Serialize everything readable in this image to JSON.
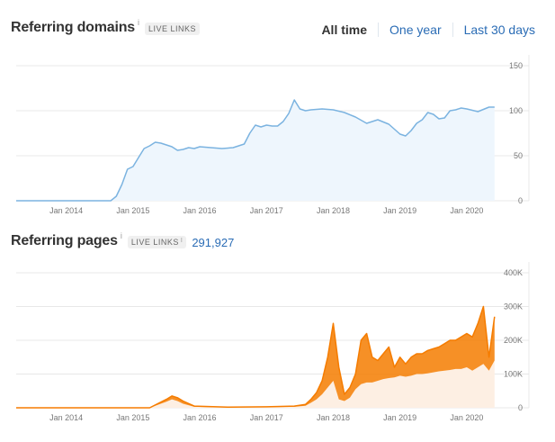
{
  "domains_panel": {
    "title": "Referring domains",
    "info_mark": "i",
    "badge": "LIVE LINKS"
  },
  "time_tabs": [
    {
      "label": "All time",
      "active": true
    },
    {
      "label": "One year",
      "active": false
    },
    {
      "label": "Last 30 days",
      "active": false
    }
  ],
  "pages_panel": {
    "title": "Referring pages",
    "info_mark": "i",
    "badge": "LIVE LINKS",
    "badge_info": "i",
    "count": "291,927"
  },
  "colors": {
    "domains_line": "#7bb3e0",
    "domains_fill": "#eef6fd",
    "pages_line": "#f57c00",
    "pages_fill": "#fdefe3"
  },
  "chart_data": [
    {
      "type": "area",
      "title": "Referring domains",
      "x_ticks": [
        "Jan 2014",
        "Jan 2015",
        "Jan 2016",
        "Jan 2017",
        "Jan 2018",
        "Jan 2019",
        "Jan 2020"
      ],
      "y_ticks": [
        "150",
        "100",
        "50",
        "0"
      ],
      "ylim": [
        0,
        150
      ],
      "xlim": [
        "2013-04",
        "2020-07"
      ],
      "grid": true,
      "series": [
        {
          "x": [
            "2013-04",
            "2014-03",
            "2014-09",
            "2014-10",
            "2014-11",
            "2014-12",
            "2015-01",
            "2015-02",
            "2015-03",
            "2015-04",
            "2015-05",
            "2015-06",
            "2015-07",
            "2015-08",
            "2015-09",
            "2015-10",
            "2015-11",
            "2015-12",
            "2016-01",
            "2016-03",
            "2016-05",
            "2016-07",
            "2016-09",
            "2016-10",
            "2016-11",
            "2016-12",
            "2017-01",
            "2017-02",
            "2017-03",
            "2017-04",
            "2017-05",
            "2017-06",
            "2017-07",
            "2017-08",
            "2017-09",
            "2017-11",
            "2018-01",
            "2018-03",
            "2018-05",
            "2018-07",
            "2018-09",
            "2018-11",
            "2019-01",
            "2019-02",
            "2019-03",
            "2019-04",
            "2019-05",
            "2019-06",
            "2019-07",
            "2019-08",
            "2019-09",
            "2019-10",
            "2019-11",
            "2019-12",
            "2020-01",
            "2020-03",
            "2020-05",
            "2020-06"
          ],
          "values": [
            0,
            0,
            0,
            5,
            18,
            35,
            38,
            48,
            58,
            61,
            65,
            64,
            62,
            60,
            56,
            57,
            59,
            58,
            60,
            59,
            58,
            59,
            63,
            75,
            84,
            82,
            84,
            83,
            83,
            88,
            97,
            112,
            102,
            100,
            101,
            102,
            101,
            98,
            93,
            86,
            90,
            85,
            74,
            72,
            78,
            86,
            90,
            98,
            96,
            91,
            92,
            100,
            101,
            103,
            102,
            99,
            104,
            104
          ]
        }
      ]
    },
    {
      "type": "area",
      "title": "Referring pages",
      "x_ticks": [
        "Jan 2014",
        "Jan 2015",
        "Jan 2016",
        "Jan 2017",
        "Jan 2018",
        "Jan 2019",
        "Jan 2020"
      ],
      "y_ticks": [
        "400K",
        "300K",
        "200K",
        "100K",
        "0"
      ],
      "ylim": [
        0,
        400000
      ],
      "xlim": [
        "2013-04",
        "2020-07"
      ],
      "grid": true,
      "series": [
        {
          "name": "",
          "x": [
            "2013-04",
            "2015-04",
            "2015-07",
            "2015-08",
            "2015-09",
            "2015-10",
            "2015-12",
            "2016-06",
            "2017-01",
            "2017-06",
            "2017-08",
            "2017-09",
            "2017-10",
            "2017-11",
            "2017-12",
            "2018-01",
            "2018-02",
            "2018-03",
            "2018-04",
            "2018-05",
            "2018-06",
            "2018-07",
            "2018-08",
            "2018-09",
            "2018-10",
            "2018-11",
            "2018-12",
            "2019-01",
            "2019-02",
            "2019-03",
            "2019-04",
            "2019-05",
            "2019-06",
            "2019-07",
            "2019-08",
            "2019-09",
            "2019-10",
            "2019-11",
            "2019-12",
            "2020-01",
            "2020-02",
            "2020-03",
            "2020-04",
            "2020-05",
            "2020-06"
          ],
          "values": [
            0,
            0,
            25000,
            35000,
            30000,
            20000,
            5000,
            2000,
            3000,
            5000,
            10000,
            25000,
            45000,
            80000,
            150000,
            250000,
            120000,
            40000,
            60000,
            100000,
            200000,
            220000,
            150000,
            140000,
            160000,
            180000,
            120000,
            150000,
            130000,
            150000,
            160000,
            160000,
            170000,
            175000,
            180000,
            190000,
            200000,
            200000,
            210000,
            220000,
            210000,
            250000,
            300000,
            150000,
            270000
          ],
          "low": [
            0,
            0,
            18000,
            25000,
            20000,
            12000,
            3000,
            1000,
            2000,
            3000,
            6000,
            15000,
            25000,
            40000,
            60000,
            80000,
            25000,
            20000,
            30000,
            55000,
            70000,
            75000,
            75000,
            80000,
            85000,
            88000,
            90000,
            95000,
            92000,
            95000,
            100000,
            100000,
            102000,
            105000,
            108000,
            110000,
            112000,
            115000,
            115000,
            120000,
            110000,
            120000,
            130000,
            110000,
            140000
          ]
        }
      ]
    }
  ]
}
